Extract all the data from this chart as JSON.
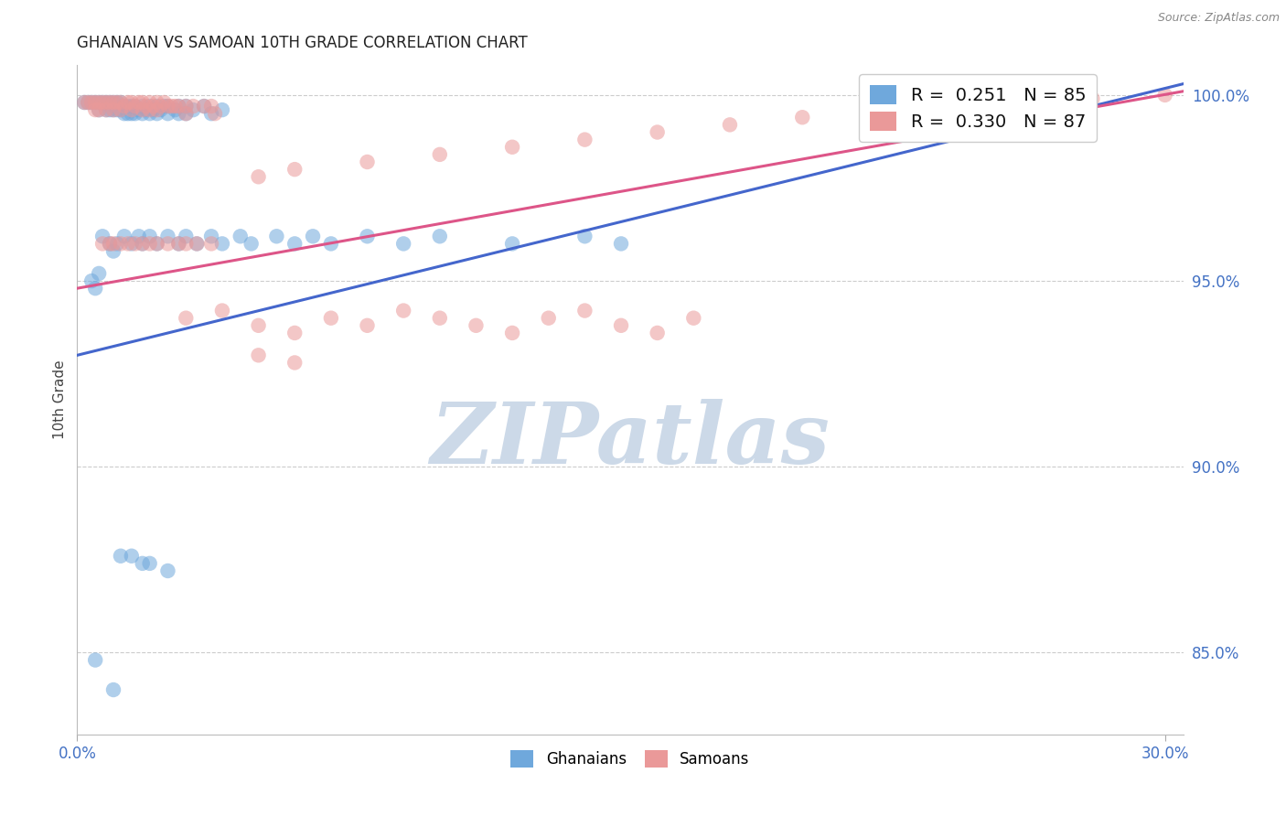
{
  "title": "GHANAIAN VS SAMOAN 10TH GRADE CORRELATION CHART",
  "source": "Source: ZipAtlas.com",
  "ylabel": "10th Grade",
  "xlim": [
    0.0,
    0.305
  ],
  "ylim": [
    0.828,
    1.008
  ],
  "ytick_vals": [
    0.85,
    0.9,
    0.95,
    1.0
  ],
  "ytick_labels": [
    "85.0%",
    "90.0%",
    "95.0%",
    "100.0%"
  ],
  "xtick_vals": [
    0.0,
    0.3
  ],
  "xtick_labels": [
    "0.0%",
    "30.0%"
  ],
  "R_blue": 0.251,
  "N_blue": 85,
  "R_pink": 0.33,
  "N_pink": 87,
  "blue_color": "#6fa8dc",
  "pink_color": "#ea9999",
  "line_blue": "#4466cc",
  "line_pink": "#dd5588",
  "blue_line_y": [
    0.93,
    1.003
  ],
  "pink_line_y": [
    0.948,
    1.001
  ],
  "watermark_text": "ZIPatlas",
  "watermark_color": "#ccd9e8",
  "background_color": "#ffffff",
  "grid_color": "#cccccc",
  "tick_color": "#4472c4",
  "legend_label_blue": "Ghanaians",
  "legend_label_pink": "Samoans",
  "blue_scatter_x": [
    0.002,
    0.003,
    0.004,
    0.005,
    0.006,
    0.006,
    0.007,
    0.008,
    0.008,
    0.009,
    0.009,
    0.01,
    0.01,
    0.011,
    0.011,
    0.012,
    0.012,
    0.013,
    0.013,
    0.014,
    0.014,
    0.015,
    0.015,
    0.016,
    0.016,
    0.017,
    0.018,
    0.018,
    0.019,
    0.02,
    0.02,
    0.021,
    0.022,
    0.022,
    0.023,
    0.024,
    0.025,
    0.025,
    0.027,
    0.028,
    0.028,
    0.03,
    0.03,
    0.032,
    0.035,
    0.037,
    0.04,
    0.007,
    0.009,
    0.01,
    0.011,
    0.013,
    0.015,
    0.017,
    0.018,
    0.02,
    0.022,
    0.025,
    0.028,
    0.03,
    0.033,
    0.037,
    0.04,
    0.045,
    0.048,
    0.055,
    0.06,
    0.065,
    0.07,
    0.08,
    0.09,
    0.1,
    0.12,
    0.14,
    0.15,
    0.004,
    0.005,
    0.006,
    0.005,
    0.01,
    0.012,
    0.015,
    0.018,
    0.02,
    0.025
  ],
  "blue_scatter_y": [
    0.998,
    0.998,
    0.998,
    0.998,
    0.998,
    0.996,
    0.998,
    0.998,
    0.996,
    0.998,
    0.996,
    0.998,
    0.996,
    0.998,
    0.996,
    0.998,
    0.996,
    0.997,
    0.995,
    0.997,
    0.995,
    0.997,
    0.995,
    0.997,
    0.995,
    0.996,
    0.997,
    0.995,
    0.996,
    0.997,
    0.995,
    0.996,
    0.997,
    0.995,
    0.996,
    0.997,
    0.997,
    0.995,
    0.996,
    0.997,
    0.995,
    0.997,
    0.995,
    0.996,
    0.997,
    0.995,
    0.996,
    0.962,
    0.96,
    0.958,
    0.96,
    0.962,
    0.96,
    0.962,
    0.96,
    0.962,
    0.96,
    0.962,
    0.96,
    0.962,
    0.96,
    0.962,
    0.96,
    0.962,
    0.96,
    0.962,
    0.96,
    0.962,
    0.96,
    0.962,
    0.96,
    0.962,
    0.96,
    0.962,
    0.96,
    0.95,
    0.948,
    0.952,
    0.848,
    0.84,
    0.876,
    0.876,
    0.874,
    0.874,
    0.872
  ],
  "pink_scatter_x": [
    0.002,
    0.003,
    0.004,
    0.005,
    0.005,
    0.006,
    0.006,
    0.007,
    0.008,
    0.008,
    0.009,
    0.01,
    0.01,
    0.011,
    0.012,
    0.012,
    0.013,
    0.014,
    0.015,
    0.015,
    0.016,
    0.017,
    0.018,
    0.018,
    0.019,
    0.02,
    0.02,
    0.021,
    0.022,
    0.022,
    0.023,
    0.024,
    0.025,
    0.026,
    0.027,
    0.028,
    0.03,
    0.03,
    0.032,
    0.035,
    0.037,
    0.038,
    0.007,
    0.009,
    0.01,
    0.012,
    0.014,
    0.016,
    0.018,
    0.02,
    0.022,
    0.025,
    0.028,
    0.03,
    0.033,
    0.037,
    0.05,
    0.06,
    0.08,
    0.1,
    0.12,
    0.14,
    0.16,
    0.18,
    0.2,
    0.22,
    0.24,
    0.26,
    0.28,
    0.3,
    0.05,
    0.06,
    0.03,
    0.04,
    0.05,
    0.06,
    0.07,
    0.08,
    0.09,
    0.1,
    0.11,
    0.12,
    0.13,
    0.14,
    0.15,
    0.16,
    0.17
  ],
  "pink_scatter_y": [
    0.998,
    0.998,
    0.998,
    0.998,
    0.996,
    0.998,
    0.996,
    0.998,
    0.998,
    0.996,
    0.998,
    0.998,
    0.996,
    0.998,
    0.998,
    0.996,
    0.997,
    0.998,
    0.998,
    0.996,
    0.997,
    0.998,
    0.998,
    0.996,
    0.997,
    0.998,
    0.996,
    0.997,
    0.998,
    0.996,
    0.997,
    0.998,
    0.997,
    0.997,
    0.997,
    0.997,
    0.997,
    0.995,
    0.997,
    0.997,
    0.997,
    0.995,
    0.96,
    0.96,
    0.96,
    0.96,
    0.96,
    0.96,
    0.96,
    0.96,
    0.96,
    0.96,
    0.96,
    0.96,
    0.96,
    0.96,
    0.978,
    0.98,
    0.982,
    0.984,
    0.986,
    0.988,
    0.99,
    0.992,
    0.994,
    0.996,
    0.997,
    0.998,
    0.999,
    1.0,
    0.93,
    0.928,
    0.94,
    0.942,
    0.938,
    0.936,
    0.94,
    0.938,
    0.942,
    0.94,
    0.938,
    0.936,
    0.94,
    0.942,
    0.938,
    0.936,
    0.94
  ]
}
